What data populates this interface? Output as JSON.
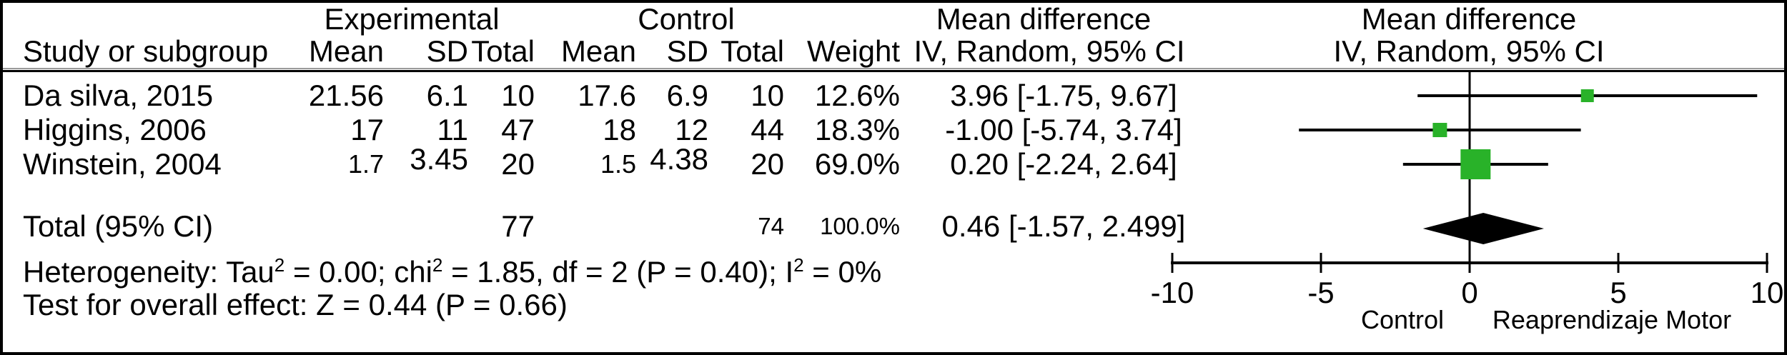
{
  "header": {
    "group_experimental": "Experimental",
    "group_control": "Control",
    "group_mean_difference_text": "Mean difference",
    "group_mean_difference_plot": "Mean difference",
    "col_study": "Study or subgroup",
    "col_exp_mean": "Mean",
    "col_exp_sd": "SD",
    "col_exp_total": "Total",
    "col_ctl_mean": "Mean",
    "col_ctl_sd": "SD",
    "col_ctl_total": "Total",
    "col_weight": "Weight",
    "col_iv_text": "IV, Random, 95% CI",
    "col_iv_plot": "IV, Random, 95% CI"
  },
  "rows": [
    {
      "study": "Da silva, 2015",
      "exp_mean": "21.56",
      "exp_sd": "6.1",
      "exp_total": "10",
      "ctl_mean": "17.6",
      "ctl_sd": "6.9",
      "ctl_total": "10",
      "weight": "12.6%",
      "ci": "3.96 [-1.75, 9.67]"
    },
    {
      "study": "Higgins, 2006",
      "exp_mean": "17",
      "exp_sd": "11",
      "exp_total": "47",
      "ctl_mean": "18",
      "ctl_sd": "12",
      "ctl_total": "44",
      "weight": "18.3%",
      "ci": "-1.00 [-5.74, 3.74]"
    },
    {
      "study": "Winstein, 2004",
      "exp_mean": "1.7",
      "exp_sd": "3.45",
      "exp_total": "20",
      "ctl_mean": "1.5",
      "ctl_sd": "4.38",
      "ctl_total": "20",
      "weight": "69.0%",
      "ci": "0.20 [-2.24, 2.64]"
    }
  ],
  "total_row": {
    "label": "Total (95% CI)",
    "exp_total": "77",
    "ctl_total": "74",
    "weight": "100.0%",
    "ci": "0.46 [-1.57, 2.499]"
  },
  "footer": {
    "heterogeneity": "Heterogeneity: Tau² = 0.00; chi² = 1.85, df = 2 (P = 0.40); I² = 0%",
    "overall_effect": "Test for overall effect: Z = 0.44 (P = 0.66)"
  },
  "chart_data": {
    "type": "forest",
    "effect_measure": "Mean difference, IV, Random, 95% CI",
    "xlim": [
      -10,
      10
    ],
    "x_ticks": [
      -10,
      -5,
      0,
      5,
      10
    ],
    "favours_left": "Control",
    "favours_right": "Reaprendizaje Motor",
    "marker_color": "#29b229",
    "line_color": "#000000",
    "studies": [
      {
        "name": "Da silva, 2015",
        "md": 3.96,
        "ci_low": -1.75,
        "ci_high": 9.67,
        "weight_pct": 12.6
      },
      {
        "name": "Higgins, 2006",
        "md": -1.0,
        "ci_low": -5.74,
        "ci_high": 3.74,
        "weight_pct": 18.3
      },
      {
        "name": "Winstein, 2004",
        "md": 0.2,
        "ci_low": -2.24,
        "ci_high": 2.64,
        "weight_pct": 69.0
      }
    ],
    "total": {
      "md": 0.46,
      "ci_low": -1.57,
      "ci_high": 2.499,
      "weight_pct": 100.0
    }
  }
}
